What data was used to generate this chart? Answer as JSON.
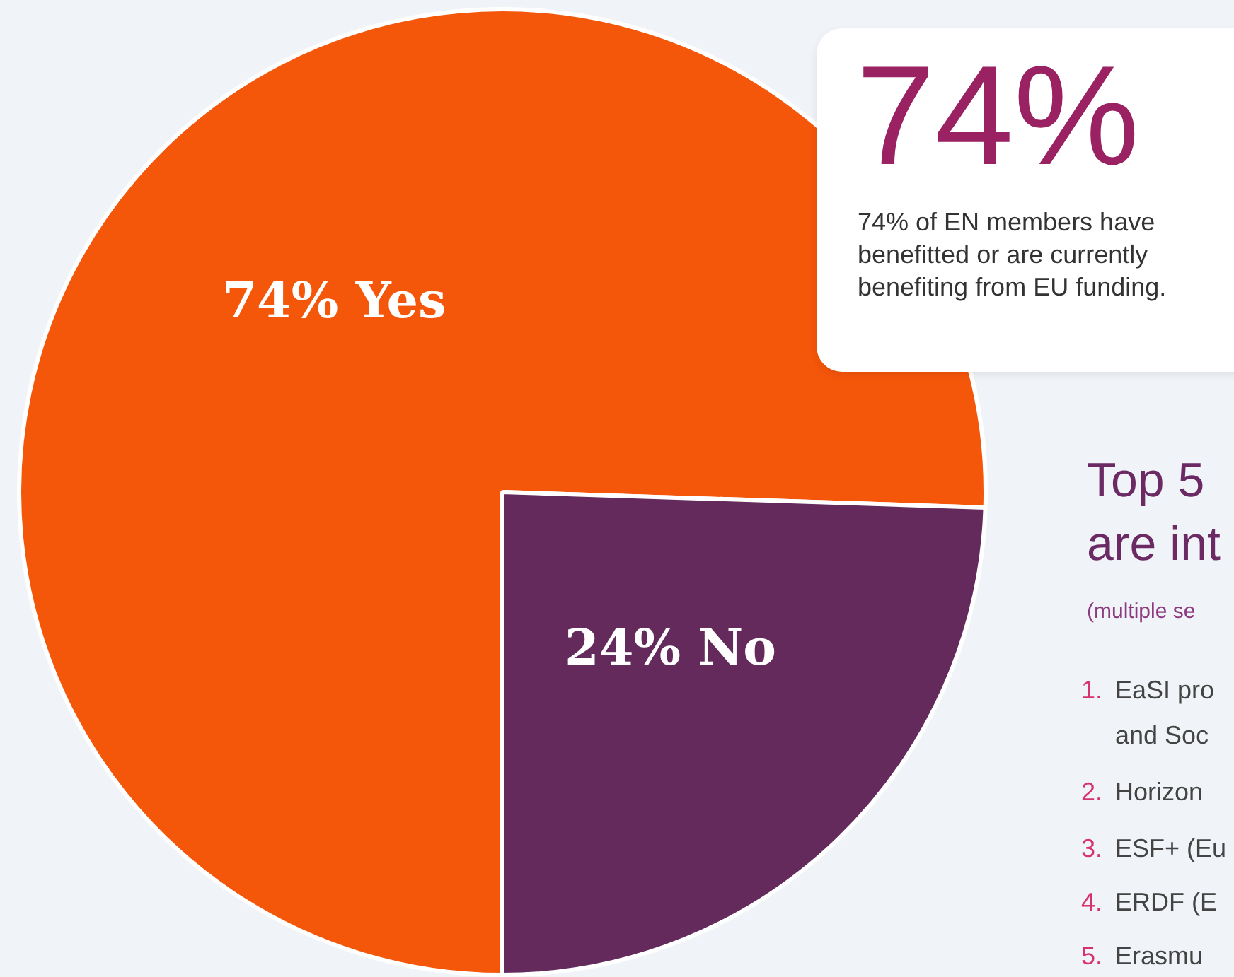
{
  "chart_data": {
    "type": "pie",
    "categories": [
      "Yes",
      "No"
    ],
    "values": [
      74,
      24
    ],
    "colors": [
      "#f4560a",
      "#632a5b"
    ],
    "value_labels": [
      "74%",
      "24%"
    ],
    "legend": false,
    "annotations": [
      "74%",
      "74% of EN members have benefitted or are currently benefiting from EU funding.",
      "Top 5\nare int",
      "(multiple se",
      "1. EaSI pro\nand Soc",
      "2. Horizon",
      "3. ESF+ (Eu",
      "4. ERDF (E",
      "5. Erasmu"
    ]
  }
}
